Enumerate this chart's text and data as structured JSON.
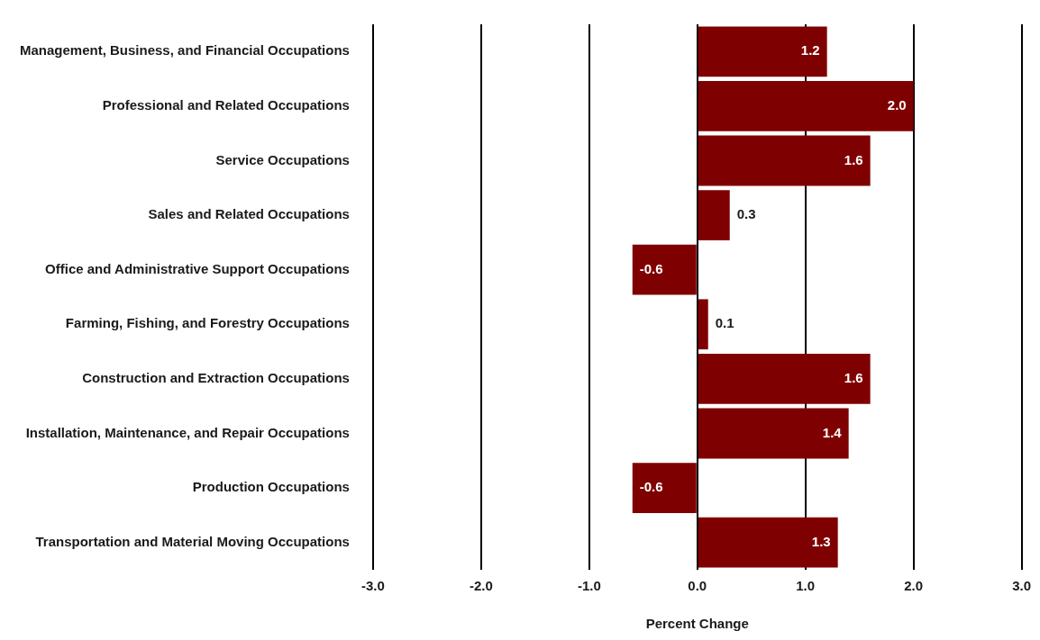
{
  "chart_data": {
    "type": "bar",
    "orientation": "horizontal",
    "xlabel": "Percent Change",
    "categories": [
      "Management, Business, and Financial Occupations",
      "Professional and Related Occupations",
      "Service Occupations",
      "Sales and Related Occupations",
      "Office and Administrative Support Occupations",
      "Farming, Fishing, and Forestry Occupations",
      "Construction and Extraction Occupations",
      "Installation, Maintenance, and Repair Occupations",
      "Production Occupations",
      "Transportation and Material Moving Occupations"
    ],
    "values": [
      1.2,
      2.0,
      1.6,
      0.3,
      -0.6,
      0.1,
      1.6,
      1.4,
      -0.6,
      1.3
    ],
    "value_labels": [
      "1.2",
      "2.0",
      "1.6",
      "0.3",
      "-0.6",
      "0.1",
      "1.6",
      "1.4",
      "-0.6",
      "1.3"
    ],
    "color": "#7f0000",
    "xlim": [
      -3,
      3
    ],
    "xticks": [
      {
        "value": -3,
        "label": "-3.0"
      },
      {
        "value": -2,
        "label": "-2.0"
      },
      {
        "value": -1,
        "label": "-1.0"
      },
      {
        "value": 0,
        "label": "0.0"
      },
      {
        "value": 1,
        "label": "1.0"
      },
      {
        "value": 2,
        "label": "2.0"
      },
      {
        "value": 3,
        "label": "3.0"
      }
    ],
    "grid": "x",
    "legend": false
  }
}
